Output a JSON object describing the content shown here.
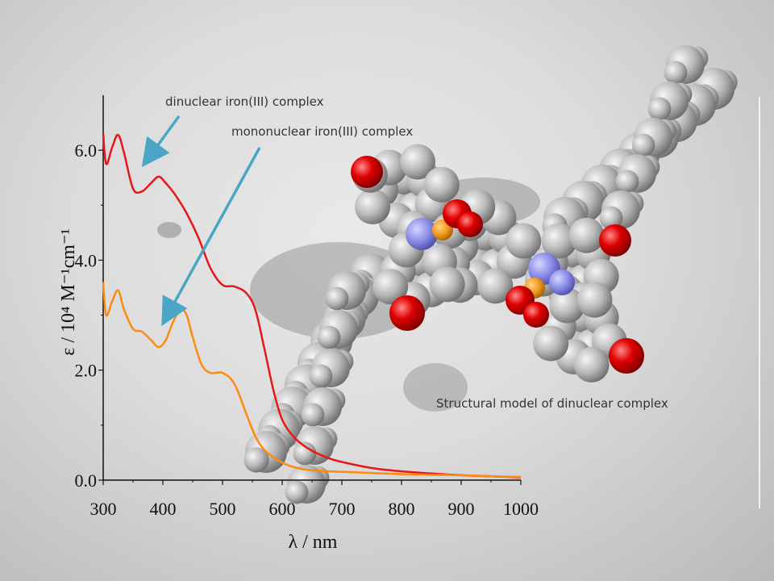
{
  "colors": {
    "dinuclear": "#e8161a",
    "mononuclear": "#ff8a10",
    "arrow": "#4aa6c4",
    "oxygen": "#e00000",
    "nitrogen": "#8a8ce8",
    "iron": "#f29a1c",
    "carbon": "#b4b4b4"
  },
  "annotations": {
    "dinuclear_label": "dinuclear iron(III) complex",
    "mononuclear_label": "mononuclear iron(III) complex",
    "model_caption": "Structural model of dinuclear complex"
  },
  "chart_data": {
    "type": "line",
    "xlabel": "λ / nm",
    "ylabel": "ε / 10⁴ M⁻¹cm⁻¹",
    "xlim": [
      300,
      1000
    ],
    "ylim": [
      0,
      7
    ],
    "x_ticks": [
      300,
      400,
      500,
      600,
      700,
      800,
      900,
      1000
    ],
    "y_ticks": [
      "0.0",
      "2.0",
      "4.0",
      "6.0"
    ],
    "y_tick_values": [
      0,
      2,
      4,
      6
    ],
    "series": [
      {
        "name": "dinuclear iron(III) complex",
        "x": [
          300,
          305,
          315,
          325,
          335,
          350,
          365,
          380,
          393,
          405,
          420,
          440,
          460,
          480,
          500,
          520,
          540,
          555,
          570,
          585,
          600,
          620,
          640,
          660,
          680,
          700,
          750,
          800,
          850,
          900,
          950,
          1000
        ],
        "y": [
          6.3,
          5.75,
          6.05,
          6.28,
          5.95,
          5.3,
          5.25,
          5.4,
          5.52,
          5.4,
          5.2,
          4.85,
          4.4,
          3.85,
          3.55,
          3.52,
          3.4,
          3.1,
          2.4,
          1.65,
          1.1,
          0.78,
          0.6,
          0.48,
          0.39,
          0.33,
          0.22,
          0.16,
          0.12,
          0.09,
          0.07,
          0.05
        ]
      },
      {
        "name": "mononuclear iron(III) complex",
        "x": [
          300,
          305,
          315,
          325,
          335,
          350,
          365,
          380,
          393,
          405,
          418,
          430,
          440,
          450,
          465,
          480,
          500,
          520,
          540,
          555,
          570,
          590,
          610,
          630,
          650,
          680,
          700,
          750,
          800,
          850,
          900,
          950,
          1000
        ],
        "y": [
          3.6,
          3.0,
          3.25,
          3.45,
          3.1,
          2.75,
          2.7,
          2.55,
          2.42,
          2.55,
          2.9,
          3.1,
          3.0,
          2.6,
          2.1,
          1.95,
          1.95,
          1.75,
          1.2,
          0.8,
          0.55,
          0.38,
          0.27,
          0.21,
          0.18,
          0.16,
          0.15,
          0.13,
          0.11,
          0.1,
          0.09,
          0.07,
          0.06
        ]
      }
    ]
  }
}
